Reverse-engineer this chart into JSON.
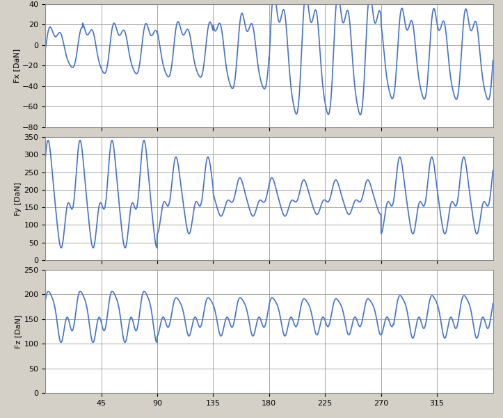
{
  "x_ticks": [
    45,
    90,
    135,
    180,
    225,
    270,
    315
  ],
  "x_min": 0,
  "x_max": 360,
  "panels": [
    {
      "ylabel": "Fx [DaN]",
      "ylim": [
        -80,
        40
      ],
      "yticks": [
        -80,
        -60,
        -40,
        -20,
        0,
        20,
        40
      ]
    },
    {
      "ylabel": "Fy [DaN]",
      "ylim": [
        0,
        350
      ],
      "yticks": [
        0,
        50,
        100,
        150,
        200,
        250,
        300,
        350
      ]
    },
    {
      "ylabel": "Fz [DaN]",
      "ylim": [
        0,
        250
      ],
      "yticks": [
        0,
        50,
        100,
        150,
        200,
        250
      ]
    }
  ],
  "line_color": "#4472C4",
  "line_width": 1.2,
  "bg_color": "#D4D0C8",
  "plot_bg_color": "#FFFFFF",
  "grid_color": "#999999"
}
